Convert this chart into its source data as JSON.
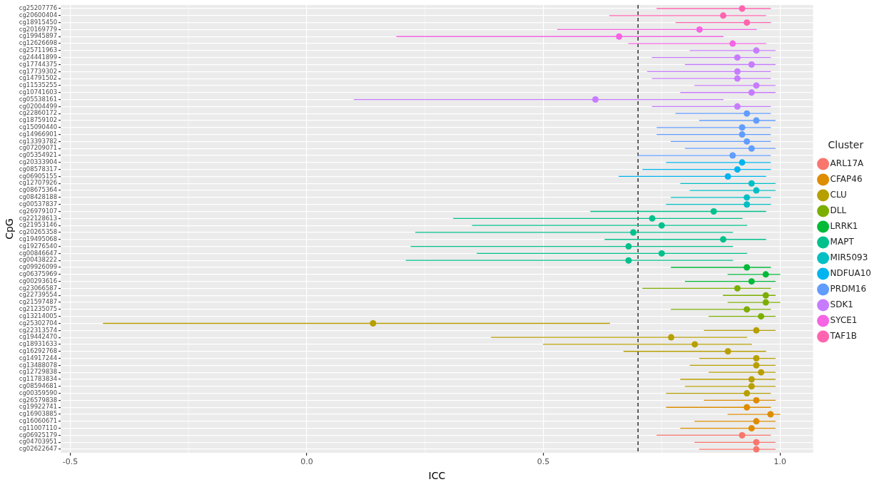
{
  "chart_data": {
    "type": "scatter",
    "orientation": "horizontal",
    "xlabel": "ICC",
    "ylabel": "CpG",
    "legend_title": "Cluster",
    "legend": "right",
    "grid": true,
    "marker": "circle",
    "categories": [
      "cg25207776",
      "cg20600404",
      "cg18915450",
      "cg20169779",
      "cg19945897",
      "cg12626698",
      "cg25711963",
      "cg24441899",
      "cg17744375",
      "cg17739302",
      "cg14791502",
      "cg11535255",
      "cg10741603",
      "cg05538161",
      "cg02004499",
      "cg22860172",
      "cg18759102",
      "cg15090440",
      "cg14966901",
      "cg13393782",
      "cg07209071",
      "cg05354921",
      "cg20333904",
      "cg08578317",
      "cg06905155",
      "cg12707926",
      "cg08675364",
      "cg08428188",
      "cg00537837",
      "cg26979107",
      "cg22128613",
      "cg21953146",
      "cg20265358",
      "cg19495068",
      "cg19276540",
      "cg00846647",
      "cg00438222",
      "cg09926099",
      "cg06375969",
      "cg00293616",
      "cg23066587",
      "cg22739554",
      "cg21597487",
      "cg21235075",
      "cg13214005",
      "cg25302704",
      "cg22313574",
      "cg19442470",
      "cg18931633",
      "cg16292768",
      "cg14917244",
      "cg13488078",
      "cg12729838",
      "cg11783834",
      "cg08594681",
      "cg00359590",
      "cg26579838",
      "cg19922741",
      "cg16903885",
      "cg16060671",
      "cg11007110",
      "cg06925179",
      "cg04703951",
      "cg02622647"
    ],
    "xlim": [
      -0.52,
      1.07
    ],
    "xticks": [
      -0.5,
      {
        "value": 0,
        "label": "0.0"
      },
      0.5,
      {
        "value": 1,
        "label": "1.0"
      }
    ],
    "ref_lines": [
      {
        "axis": "x",
        "value": 0.7,
        "color": "#000000",
        "line_style": "dashed"
      }
    ],
    "series": [
      {
        "name": "ARL17A",
        "color": "#f8766d",
        "values": [
          null,
          null,
          null,
          null,
          null,
          null,
          null,
          null,
          null,
          null,
          null,
          null,
          null,
          null,
          null,
          null,
          null,
          null,
          null,
          null,
          null,
          null,
          null,
          null,
          null,
          null,
          null,
          null,
          null,
          null,
          null,
          null,
          null,
          null,
          null,
          null,
          null,
          null,
          null,
          null,
          null,
          null,
          null,
          null,
          null,
          null,
          null,
          null,
          null,
          null,
          null,
          null,
          null,
          null,
          null,
          null,
          null,
          null,
          null,
          null,
          null,
          0.92,
          0.95,
          0.95
        ],
        "errors": [
          null,
          null,
          null,
          null,
          null,
          null,
          null,
          null,
          null,
          null,
          null,
          null,
          null,
          null,
          null,
          null,
          null,
          null,
          null,
          null,
          null,
          null,
          null,
          null,
          null,
          null,
          null,
          null,
          null,
          null,
          null,
          null,
          null,
          null,
          null,
          null,
          null,
          null,
          null,
          null,
          null,
          null,
          null,
          null,
          null,
          null,
          null,
          null,
          null,
          null,
          null,
          null,
          null,
          null,
          null,
          null,
          null,
          null,
          null,
          null,
          null,
          [
            0.74,
            0.98
          ],
          [
            0.82,
            0.99
          ],
          [
            0.83,
            0.99
          ]
        ]
      },
      {
        "name": "CFAP46",
        "color": "#de8c00",
        "values": [
          null,
          null,
          null,
          null,
          null,
          null,
          null,
          null,
          null,
          null,
          null,
          null,
          null,
          null,
          null,
          null,
          null,
          null,
          null,
          null,
          null,
          null,
          null,
          null,
          null,
          null,
          null,
          null,
          null,
          null,
          null,
          null,
          null,
          null,
          null,
          null,
          null,
          null,
          null,
          null,
          null,
          null,
          null,
          null,
          null,
          null,
          null,
          null,
          null,
          null,
          null,
          null,
          null,
          null,
          null,
          null,
          0.95,
          0.93,
          0.98,
          0.95,
          0.94,
          null,
          null,
          null
        ],
        "errors": [
          null,
          null,
          null,
          null,
          null,
          null,
          null,
          null,
          null,
          null,
          null,
          null,
          null,
          null,
          null,
          null,
          null,
          null,
          null,
          null,
          null,
          null,
          null,
          null,
          null,
          null,
          null,
          null,
          null,
          null,
          null,
          null,
          null,
          null,
          null,
          null,
          null,
          null,
          null,
          null,
          null,
          null,
          null,
          null,
          null,
          null,
          null,
          null,
          null,
          null,
          null,
          null,
          null,
          null,
          null,
          null,
          [
            0.84,
            0.99
          ],
          [
            0.76,
            0.98
          ],
          [
            0.89,
            1.0
          ],
          [
            0.82,
            0.99
          ],
          [
            0.79,
            0.99
          ],
          null,
          null,
          null
        ]
      },
      {
        "name": "CLU",
        "color": "#b79f00",
        "values": [
          null,
          null,
          null,
          null,
          null,
          null,
          null,
          null,
          null,
          null,
          null,
          null,
          null,
          null,
          null,
          null,
          null,
          null,
          null,
          null,
          null,
          null,
          null,
          null,
          null,
          null,
          null,
          null,
          null,
          null,
          null,
          null,
          null,
          null,
          null,
          null,
          null,
          null,
          null,
          null,
          null,
          null,
          null,
          null,
          null,
          0.14,
          0.95,
          0.77,
          0.82,
          0.89,
          0.95,
          0.95,
          0.96,
          0.94,
          0.94,
          0.93,
          null,
          null,
          null,
          null,
          null,
          null,
          null,
          null
        ],
        "errors": [
          null,
          null,
          null,
          null,
          null,
          null,
          null,
          null,
          null,
          null,
          null,
          null,
          null,
          null,
          null,
          null,
          null,
          null,
          null,
          null,
          null,
          null,
          null,
          null,
          null,
          null,
          null,
          null,
          null,
          null,
          null,
          null,
          null,
          null,
          null,
          null,
          null,
          null,
          null,
          null,
          null,
          null,
          null,
          null,
          null,
          [
            -0.43,
            0.64
          ],
          [
            0.84,
            0.99
          ],
          [
            0.39,
            0.93
          ],
          [
            0.5,
            0.94
          ],
          [
            0.67,
            0.97
          ],
          [
            0.83,
            0.99
          ],
          [
            0.81,
            0.99
          ],
          [
            0.85,
            0.99
          ],
          [
            0.79,
            0.99
          ],
          [
            0.8,
            0.99
          ],
          [
            0.76,
            0.98
          ],
          null,
          null,
          null,
          null,
          null,
          null,
          null,
          null
        ]
      },
      {
        "name": "DLL",
        "color": "#7cae00",
        "values": [
          null,
          null,
          null,
          null,
          null,
          null,
          null,
          null,
          null,
          null,
          null,
          null,
          null,
          null,
          null,
          null,
          null,
          null,
          null,
          null,
          null,
          null,
          null,
          null,
          null,
          null,
          null,
          null,
          null,
          null,
          null,
          null,
          null,
          null,
          null,
          null,
          null,
          null,
          null,
          null,
          0.91,
          0.97,
          0.97,
          0.93,
          0.96,
          null,
          null,
          null,
          null,
          null,
          null,
          null,
          null,
          null,
          null,
          null,
          null,
          null,
          null,
          null,
          null,
          null,
          null,
          null
        ],
        "errors": [
          null,
          null,
          null,
          null,
          null,
          null,
          null,
          null,
          null,
          null,
          null,
          null,
          null,
          null,
          null,
          null,
          null,
          null,
          null,
          null,
          null,
          null,
          null,
          null,
          null,
          null,
          null,
          null,
          null,
          null,
          null,
          null,
          null,
          null,
          null,
          null,
          null,
          null,
          null,
          null,
          [
            0.71,
            0.98
          ],
          [
            0.88,
            0.99
          ],
          [
            0.89,
            1.0
          ],
          [
            0.77,
            0.98
          ],
          [
            0.85,
            0.99
          ],
          null,
          null,
          null,
          null,
          null,
          null,
          null,
          null,
          null,
          null,
          null,
          null,
          null,
          null,
          null,
          null,
          null,
          null,
          null
        ]
      },
      {
        "name": "LRRK1",
        "color": "#00ba38",
        "values": [
          null,
          null,
          null,
          null,
          null,
          null,
          null,
          null,
          null,
          null,
          null,
          null,
          null,
          null,
          null,
          null,
          null,
          null,
          null,
          null,
          null,
          null,
          null,
          null,
          null,
          null,
          null,
          null,
          null,
          null,
          null,
          null,
          null,
          null,
          null,
          null,
          null,
          0.93,
          0.97,
          0.94,
          null,
          null,
          null,
          null,
          null,
          null,
          null,
          null,
          null,
          null,
          null,
          null,
          null,
          null,
          null,
          null,
          null,
          null,
          null,
          null,
          null,
          null,
          null,
          null
        ],
        "errors": [
          null,
          null,
          null,
          null,
          null,
          null,
          null,
          null,
          null,
          null,
          null,
          null,
          null,
          null,
          null,
          null,
          null,
          null,
          null,
          null,
          null,
          null,
          null,
          null,
          null,
          null,
          null,
          null,
          null,
          null,
          null,
          null,
          null,
          null,
          null,
          null,
          null,
          [
            0.77,
            0.98
          ],
          [
            0.89,
            1.0
          ],
          [
            0.8,
            0.99
          ],
          null,
          null,
          null,
          null,
          null,
          null,
          null,
          null,
          null,
          null,
          null,
          null,
          null,
          null,
          null,
          null,
          null,
          null,
          null,
          null,
          null,
          null,
          null,
          null
        ]
      },
      {
        "name": "MAPT",
        "color": "#00c08b",
        "values": [
          null,
          null,
          null,
          null,
          null,
          null,
          null,
          null,
          null,
          null,
          null,
          null,
          null,
          null,
          null,
          null,
          null,
          null,
          null,
          null,
          null,
          null,
          null,
          null,
          null,
          null,
          null,
          null,
          null,
          0.86,
          0.73,
          0.75,
          0.69,
          0.88,
          0.68,
          0.75,
          0.68,
          null,
          null,
          null,
          null,
          null,
          null,
          null,
          null,
          null,
          null,
          null,
          null,
          null,
          null,
          null,
          null,
          null,
          null,
          null,
          null,
          null,
          null,
          null,
          null,
          null,
          null,
          null
        ],
        "errors": [
          null,
          null,
          null,
          null,
          null,
          null,
          null,
          null,
          null,
          null,
          null,
          null,
          null,
          null,
          null,
          null,
          null,
          null,
          null,
          null,
          null,
          null,
          null,
          null,
          null,
          null,
          null,
          null,
          null,
          [
            0.6,
            0.97
          ],
          [
            0.31,
            0.92
          ],
          [
            0.35,
            0.93
          ],
          [
            0.23,
            0.9
          ],
          [
            0.63,
            0.97
          ],
          [
            0.22,
            0.9
          ],
          [
            0.36,
            0.93
          ],
          [
            0.21,
            0.9
          ],
          null,
          null,
          null,
          null,
          null,
          null,
          null,
          null,
          null,
          null,
          null,
          null,
          null,
          null,
          null,
          null,
          null,
          null,
          null,
          null,
          null,
          null,
          null,
          null,
          null,
          null,
          null
        ]
      },
      {
        "name": "MIR5093",
        "color": "#00bfc4",
        "values": [
          null,
          null,
          null,
          null,
          null,
          null,
          null,
          null,
          null,
          null,
          null,
          null,
          null,
          null,
          null,
          null,
          null,
          null,
          null,
          null,
          null,
          null,
          null,
          null,
          null,
          0.94,
          0.95,
          0.93,
          0.93,
          null,
          null,
          null,
          null,
          null,
          null,
          null,
          null,
          null,
          null,
          null,
          null,
          null,
          null,
          null,
          null,
          null,
          null,
          null,
          null,
          null,
          null,
          null,
          null,
          null,
          null,
          null,
          null,
          null,
          null,
          null,
          null,
          null,
          null,
          null
        ],
        "errors": [
          null,
          null,
          null,
          null,
          null,
          null,
          null,
          null,
          null,
          null,
          null,
          null,
          null,
          null,
          null,
          null,
          null,
          null,
          null,
          null,
          null,
          null,
          null,
          null,
          null,
          [
            0.79,
            0.99
          ],
          [
            0.81,
            0.99
          ],
          [
            0.77,
            0.98
          ],
          [
            0.76,
            0.98
          ],
          null,
          null,
          null,
          null,
          null,
          null,
          null,
          null,
          null,
          null,
          null,
          null,
          null,
          null,
          null,
          null,
          null,
          null,
          null,
          null,
          null,
          null,
          null,
          null,
          null,
          null,
          null,
          null,
          null,
          null,
          null,
          null,
          null,
          null,
          null
        ]
      },
      {
        "name": "NDFUA10",
        "color": "#00b4f0",
        "values": [
          null,
          null,
          null,
          null,
          null,
          null,
          null,
          null,
          null,
          null,
          null,
          null,
          null,
          null,
          null,
          null,
          null,
          null,
          null,
          null,
          null,
          null,
          0.92,
          0.91,
          0.89,
          null,
          null,
          null,
          null,
          null,
          null,
          null,
          null,
          null,
          null,
          null,
          null,
          null,
          null,
          null,
          null,
          null,
          null,
          null,
          null,
          null,
          null,
          null,
          null,
          null,
          null,
          null,
          null,
          null,
          null,
          null,
          null,
          null,
          null,
          null,
          null,
          null,
          null,
          null
        ],
        "errors": [
          null,
          null,
          null,
          null,
          null,
          null,
          null,
          null,
          null,
          null,
          null,
          null,
          null,
          null,
          null,
          null,
          null,
          null,
          null,
          null,
          null,
          null,
          [
            0.76,
            0.98
          ],
          [
            0.71,
            0.98
          ],
          [
            0.66,
            0.97
          ],
          null,
          null,
          null,
          null,
          null,
          null,
          null,
          null,
          null,
          null,
          null,
          null,
          null,
          null,
          null,
          null,
          null,
          null,
          null,
          null,
          null,
          null,
          null,
          null,
          null,
          null,
          null,
          null,
          null,
          null,
          null,
          null,
          null,
          null,
          null,
          null,
          null,
          null,
          null
        ]
      },
      {
        "name": "PRDM16",
        "color": "#619cff",
        "values": [
          null,
          null,
          null,
          null,
          null,
          null,
          null,
          null,
          null,
          null,
          null,
          null,
          null,
          null,
          null,
          0.93,
          0.95,
          0.92,
          0.92,
          0.93,
          0.94,
          0.9,
          null,
          null,
          null,
          null,
          null,
          null,
          null,
          null,
          null,
          null,
          null,
          null,
          null,
          null,
          null,
          null,
          null,
          null,
          null,
          null,
          null,
          null,
          null,
          null,
          null,
          null,
          null,
          null,
          null,
          null,
          null,
          null,
          null,
          null,
          null,
          null,
          null,
          null,
          null,
          null,
          null,
          null
        ],
        "errors": [
          null,
          null,
          null,
          null,
          null,
          null,
          null,
          null,
          null,
          null,
          null,
          null,
          null,
          null,
          null,
          [
            0.78,
            0.98
          ],
          [
            0.83,
            0.99
          ],
          [
            0.74,
            0.98
          ],
          [
            0.74,
            0.98
          ],
          [
            0.77,
            0.98
          ],
          [
            0.8,
            0.99
          ],
          [
            0.7,
            0.98
          ],
          null,
          null,
          null,
          null,
          null,
          null,
          null,
          null,
          null,
          null,
          null,
          null,
          null,
          null,
          null,
          null,
          null,
          null,
          null,
          null,
          null,
          null,
          null,
          null,
          null,
          null,
          null,
          null,
          null,
          null,
          null,
          null,
          null,
          null,
          null,
          null,
          null,
          null,
          null,
          null,
          null,
          null
        ]
      },
      {
        "name": "SDK1",
        "color": "#c77cff",
        "values": [
          null,
          null,
          null,
          null,
          null,
          null,
          0.95,
          0.91,
          0.94,
          0.91,
          0.91,
          0.95,
          0.94,
          0.61,
          0.91,
          null,
          null,
          null,
          null,
          null,
          null,
          null,
          null,
          null,
          null,
          null,
          null,
          null,
          null,
          null,
          null,
          null,
          null,
          null,
          null,
          null,
          null,
          null,
          null,
          null,
          null,
          null,
          null,
          null,
          null,
          null,
          null,
          null,
          null,
          null,
          null,
          null,
          null,
          null,
          null,
          null,
          null,
          null,
          null,
          null,
          null,
          null,
          null,
          null
        ],
        "errors": [
          null,
          null,
          null,
          null,
          null,
          null,
          [
            0.81,
            0.99
          ],
          [
            0.73,
            0.98
          ],
          [
            0.8,
            0.99
          ],
          [
            0.72,
            0.98
          ],
          [
            0.73,
            0.98
          ],
          [
            0.82,
            0.99
          ],
          [
            0.79,
            0.99
          ],
          [
            0.1,
            0.88
          ],
          [
            0.73,
            0.98
          ],
          null,
          null,
          null,
          null,
          null,
          null,
          null,
          null,
          null,
          null,
          null,
          null,
          null,
          null,
          null,
          null,
          null,
          null,
          null,
          null,
          null,
          null,
          null,
          null,
          null,
          null,
          null,
          null,
          null,
          null,
          null,
          null,
          null,
          null,
          null,
          null,
          null,
          null,
          null,
          null,
          null,
          null,
          null,
          null,
          null,
          null,
          null,
          null,
          null
        ]
      },
      {
        "name": "SYCE1",
        "color": "#f564e3",
        "values": [
          null,
          null,
          null,
          0.83,
          0.66,
          0.9,
          null,
          null,
          null,
          null,
          null,
          null,
          null,
          null,
          null,
          null,
          null,
          null,
          null,
          null,
          null,
          null,
          null,
          null,
          null,
          null,
          null,
          null,
          null,
          null,
          null,
          null,
          null,
          null,
          null,
          null,
          null,
          null,
          null,
          null,
          null,
          null,
          null,
          null,
          null,
          null,
          null,
          null,
          null,
          null,
          null,
          null,
          null,
          null,
          null,
          null,
          null,
          null,
          null,
          null,
          null,
          null,
          null,
          null
        ],
        "errors": [
          null,
          null,
          null,
          [
            0.53,
            0.95
          ],
          [
            0.19,
            0.88
          ],
          [
            0.68,
            0.97
          ],
          null,
          null,
          null,
          null,
          null,
          null,
          null,
          null,
          null,
          null,
          null,
          null,
          null,
          null,
          null,
          null,
          null,
          null,
          null,
          null,
          null,
          null,
          null,
          null,
          null,
          null,
          null,
          null,
          null,
          null,
          null,
          null,
          null,
          null,
          null,
          null,
          null,
          null,
          null,
          null,
          null,
          null,
          null,
          null,
          null,
          null,
          null,
          null,
          null,
          null,
          null,
          null,
          null,
          null,
          null,
          null,
          null,
          null
        ]
      },
      {
        "name": "TAF1B",
        "color": "#ff64b0",
        "values": [
          0.92,
          0.88,
          0.93,
          null,
          null,
          null,
          null,
          null,
          null,
          null,
          null,
          null,
          null,
          null,
          null,
          null,
          null,
          null,
          null,
          null,
          null,
          null,
          null,
          null,
          null,
          null,
          null,
          null,
          null,
          null,
          null,
          null,
          null,
          null,
          null,
          null,
          null,
          null,
          null,
          null,
          null,
          null,
          null,
          null,
          null,
          null,
          null,
          null,
          null,
          null,
          null,
          null,
          null,
          null,
          null,
          null,
          null,
          null,
          null,
          null,
          null,
          null,
          null,
          null
        ],
        "errors": [
          [
            0.74,
            0.98
          ],
          [
            0.64,
            0.97
          ],
          [
            0.78,
            0.98
          ],
          null,
          null,
          null,
          null,
          null,
          null,
          null,
          null,
          null,
          null,
          null,
          null,
          null,
          null,
          null,
          null,
          null,
          null,
          null,
          null,
          null,
          null,
          null,
          null,
          null,
          null,
          null,
          null,
          null,
          null,
          null,
          null,
          null,
          null,
          null,
          null,
          null,
          null,
          null,
          null,
          null,
          null,
          null,
          null,
          null,
          null,
          null,
          null,
          null,
          null,
          null,
          null,
          null,
          null,
          null,
          null,
          null,
          null,
          null,
          null,
          null
        ]
      }
    ]
  }
}
